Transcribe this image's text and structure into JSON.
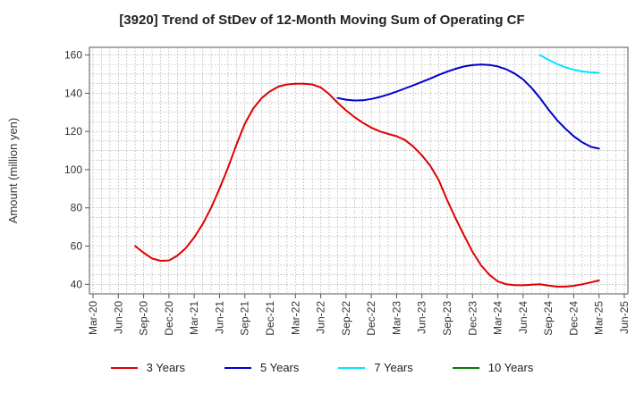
{
  "title": "[3920]  Trend of StDev of 12-Month Moving Sum of Operating CF",
  "chart_data": {
    "type": "line",
    "title": "[3920]  Trend of StDev of 12-Month Moving Sum of Operating CF",
    "xlabel": "",
    "ylabel": "Amount (million yen)",
    "ylim": [
      35,
      164
    ],
    "yticks": [
      40,
      60,
      80,
      100,
      120,
      140,
      160
    ],
    "xticks": [
      "Mar-20",
      "Jun-20",
      "Sep-20",
      "Dec-20",
      "Mar-21",
      "Jun-21",
      "Sep-21",
      "Dec-21",
      "Mar-22",
      "Jun-22",
      "Sep-22",
      "Dec-22",
      "Mar-23",
      "Jun-23",
      "Sep-23",
      "Dec-23",
      "Mar-24",
      "Jun-24",
      "Sep-24",
      "Dec-24",
      "Mar-25",
      "Jun-25"
    ],
    "grid": true,
    "legend_position": "bottom",
    "series": [
      {
        "name": "3 Years",
        "color": "#e00000",
        "x": [
          "Aug-20",
          "Sep-20",
          "Oct-20",
          "Nov-20",
          "Dec-20",
          "Jan-21",
          "Feb-21",
          "Mar-21",
          "Apr-21",
          "May-21",
          "Jun-21",
          "Jul-21",
          "Aug-21",
          "Sep-21",
          "Oct-21",
          "Nov-21",
          "Dec-21",
          "Jan-22",
          "Feb-22",
          "Mar-22",
          "Apr-22",
          "May-22",
          "Jun-22",
          "Jul-22",
          "Aug-22",
          "Sep-22",
          "Oct-22",
          "Nov-22",
          "Dec-22",
          "Jan-23",
          "Feb-23",
          "Mar-23",
          "Apr-23",
          "May-23",
          "Jun-23",
          "Jul-23",
          "Aug-23",
          "Sep-23",
          "Oct-23",
          "Nov-23",
          "Dec-23",
          "Jan-24",
          "Feb-24",
          "Mar-24",
          "Apr-24",
          "May-24",
          "Jun-24",
          "Jul-24",
          "Aug-24",
          "Sep-24",
          "Oct-24",
          "Nov-24",
          "Dec-24",
          "Jan-25",
          "Feb-25",
          "Mar-25"
        ],
        "values": [
          60,
          56.5,
          53.5,
          52.3,
          52.5,
          55,
          59,
          64.5,
          71.5,
          80,
          90,
          101,
          113,
          124,
          132,
          137.5,
          141,
          143.5,
          144.6,
          145,
          145,
          144.6,
          143,
          139.5,
          135,
          131,
          127.5,
          124.5,
          122,
          120,
          118.7,
          117.5,
          115.5,
          112,
          107.5,
          102,
          94.5,
          84,
          74.5,
          65.5,
          57,
          50,
          45,
          41.5,
          40,
          39.6,
          39.5,
          39.8,
          40,
          39.3,
          38.8,
          38.8,
          39.2,
          40,
          41,
          42
        ]
      },
      {
        "name": "5 Years",
        "color": "#0000cc",
        "x": [
          "Aug-22",
          "Sep-22",
          "Oct-22",
          "Nov-22",
          "Dec-22",
          "Jan-23",
          "Feb-23",
          "Mar-23",
          "Apr-23",
          "May-23",
          "Jun-23",
          "Jul-23",
          "Aug-23",
          "Sep-23",
          "Oct-23",
          "Nov-23",
          "Dec-23",
          "Jan-24",
          "Feb-24",
          "Mar-24",
          "Apr-24",
          "May-24",
          "Jun-24",
          "Jul-24",
          "Aug-24",
          "Sep-24",
          "Oct-24",
          "Nov-24",
          "Dec-24",
          "Jan-25",
          "Feb-25",
          "Mar-25"
        ],
        "values": [
          137.5,
          136.6,
          136.2,
          136.3,
          137,
          138,
          139.3,
          140.8,
          142.5,
          144.2,
          145.9,
          147.7,
          149.6,
          151.3,
          152.8,
          154,
          154.7,
          155,
          154.8,
          154,
          152.5,
          150.3,
          147.2,
          142.8,
          137.5,
          131.5,
          126,
          121.5,
          117.5,
          114.3,
          112,
          111
        ]
      },
      {
        "name": "7 Years",
        "color": "#00e5ff",
        "x": [
          "Aug-24",
          "Sep-24",
          "Oct-24",
          "Nov-24",
          "Dec-24",
          "Jan-25",
          "Feb-25",
          "Mar-25"
        ],
        "values": [
          160,
          157.5,
          155.3,
          153.6,
          152.3,
          151.4,
          150.9,
          150.7
        ]
      },
      {
        "name": "10 Years",
        "color": "#008000",
        "x": [],
        "values": []
      }
    ]
  }
}
